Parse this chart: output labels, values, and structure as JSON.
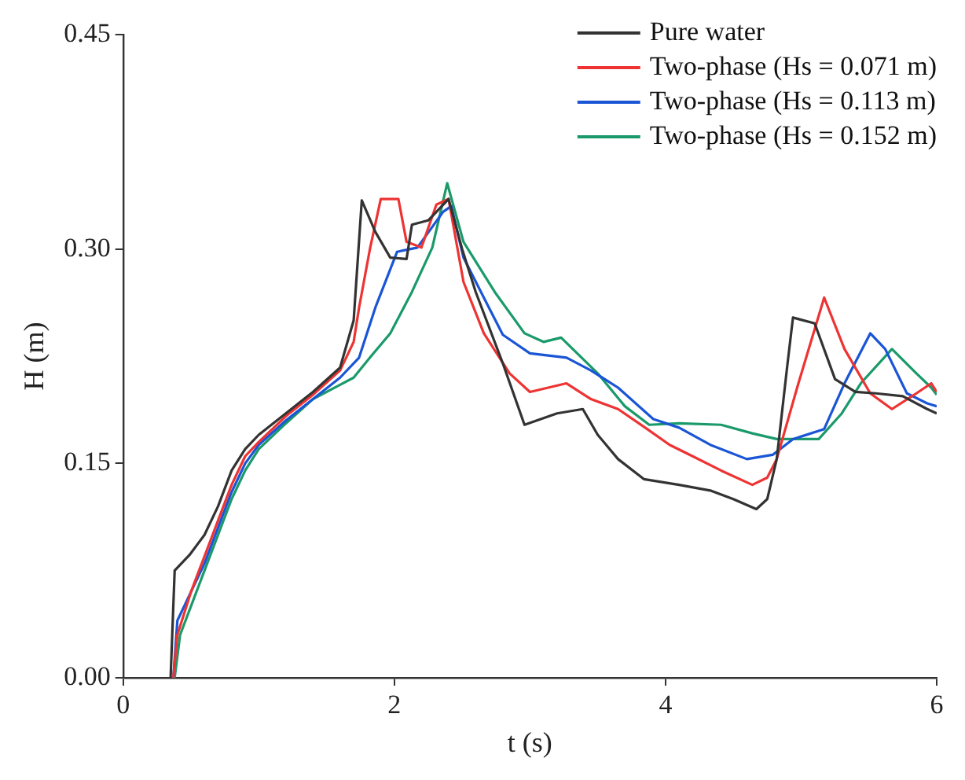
{
  "chart_data": {
    "type": "line",
    "xlabel": "t (s)",
    "ylabel": "H (m)",
    "xlim": [
      0,
      6
    ],
    "xticks": [
      0,
      2,
      4,
      6
    ],
    "ylim": [
      0,
      0.45
    ],
    "yticks": [
      {
        "value": 0,
        "label": "0.00"
      },
      {
        "value": 0.15,
        "label": "0.15"
      },
      {
        "value": 0.3,
        "label": "0.30"
      },
      {
        "value": 0.45,
        "label": "0.45"
      }
    ],
    "grid": false,
    "legend": "top right",
    "marker": "none",
    "line_style": "solid",
    "series": [
      {
        "name": "Pure water",
        "color": "#333333",
        "x": [
          0.35,
          0.38,
          0.49,
          0.6,
          0.7,
          0.8,
          0.9,
          1.0,
          1.2,
          1.4,
          1.6,
          1.7,
          1.76,
          1.86,
          1.97,
          2.09,
          2.13,
          2.25,
          2.4,
          2.5,
          2.6,
          2.8,
          2.96,
          3.2,
          3.39,
          3.5,
          3.65,
          3.84,
          4.1,
          4.33,
          4.5,
          4.67,
          4.75,
          4.82,
          4.9,
          4.94,
          5.1,
          5.25,
          5.4,
          5.55,
          5.75,
          5.93,
          6.0
        ],
        "values": [
          0,
          0.075,
          0.086,
          0.1,
          0.12,
          0.145,
          0.16,
          0.17,
          0.185,
          0.2,
          0.217,
          0.25,
          0.334,
          0.312,
          0.294,
          0.293,
          0.317,
          0.32,
          0.335,
          0.3,
          0.27,
          0.22,
          0.177,
          0.185,
          0.188,
          0.17,
          0.153,
          0.139,
          0.135,
          0.131,
          0.125,
          0.118,
          0.125,
          0.153,
          0.22,
          0.252,
          0.248,
          0.209,
          0.2,
          0.199,
          0.197,
          0.188,
          0.185
        ]
      },
      {
        "name": "Two-phase (Hs = 0.071 m)",
        "color": "#ee3333",
        "x": [
          0.37,
          0.4,
          0.5,
          0.6,
          0.7,
          0.8,
          0.9,
          1.0,
          1.2,
          1.4,
          1.6,
          1.7,
          1.74,
          1.82,
          1.9,
          2.03,
          2.09,
          2.2,
          2.31,
          2.4,
          2.51,
          2.66,
          2.85,
          3.0,
          3.27,
          3.45,
          3.65,
          3.85,
          4.03,
          4.2,
          4.41,
          4.64,
          4.75,
          4.82,
          4.98,
          5.17,
          5.32,
          5.51,
          5.67,
          5.85,
          5.96,
          6.0
        ],
        "values": [
          0,
          0.03,
          0.06,
          0.085,
          0.11,
          0.135,
          0.155,
          0.165,
          0.183,
          0.198,
          0.215,
          0.235,
          0.259,
          0.3,
          0.335,
          0.335,
          0.305,
          0.301,
          0.331,
          0.335,
          0.277,
          0.241,
          0.213,
          0.2,
          0.206,
          0.195,
          0.188,
          0.175,
          0.163,
          0.155,
          0.145,
          0.135,
          0.14,
          0.153,
          0.206,
          0.266,
          0.23,
          0.199,
          0.188,
          0.199,
          0.206,
          0.2
        ]
      },
      {
        "name": "Two-phase (Hs = 0.113 m)",
        "color": "#1a55d6",
        "x": [
          0.37,
          0.4,
          0.5,
          0.6,
          0.7,
          0.8,
          0.9,
          1.0,
          1.2,
          1.4,
          1.6,
          1.74,
          1.86,
          2.02,
          2.17,
          2.36,
          2.42,
          2.51,
          2.66,
          2.8,
          3.0,
          3.27,
          3.45,
          3.65,
          3.91,
          4.1,
          4.33,
          4.6,
          4.79,
          4.94,
          5.17,
          5.32,
          5.51,
          5.62,
          5.78,
          5.93,
          6.0
        ],
        "values": [
          0,
          0.04,
          0.06,
          0.08,
          0.105,
          0.13,
          0.15,
          0.163,
          0.18,
          0.195,
          0.21,
          0.224,
          0.259,
          0.298,
          0.301,
          0.326,
          0.33,
          0.294,
          0.266,
          0.24,
          0.227,
          0.224,
          0.215,
          0.203,
          0.181,
          0.175,
          0.163,
          0.153,
          0.156,
          0.167,
          0.174,
          0.206,
          0.241,
          0.23,
          0.199,
          0.192,
          0.19
        ]
      },
      {
        "name": "Two-phase (Hs = 0.152 m)",
        "color": "#1a9a6a",
        "x": [
          0.38,
          0.42,
          0.5,
          0.6,
          0.7,
          0.8,
          0.9,
          1.0,
          1.2,
          1.4,
          1.6,
          1.7,
          1.82,
          1.97,
          2.13,
          2.28,
          2.39,
          2.51,
          2.74,
          2.96,
          3.1,
          3.23,
          3.5,
          3.7,
          3.88,
          4.1,
          4.41,
          4.64,
          4.82,
          5.13,
          5.3,
          5.44,
          5.67,
          5.85,
          5.96,
          6.0
        ],
        "values": [
          0,
          0.03,
          0.05,
          0.075,
          0.1,
          0.125,
          0.145,
          0.16,
          0.178,
          0.195,
          0.205,
          0.21,
          0.224,
          0.241,
          0.27,
          0.301,
          0.346,
          0.305,
          0.27,
          0.241,
          0.235,
          0.238,
          0.213,
          0.19,
          0.177,
          0.178,
          0.177,
          0.171,
          0.167,
          0.167,
          0.185,
          0.206,
          0.23,
          0.213,
          0.203,
          0.198
        ]
      }
    ]
  }
}
